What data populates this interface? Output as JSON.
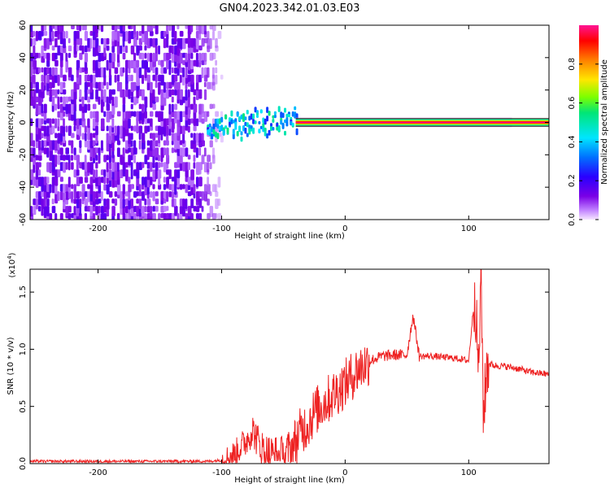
{
  "figure": {
    "title": "GN04.2023.342.01.03.E03"
  },
  "chart_data": [
    {
      "type": "heatmap",
      "xlabel": "Height of straight line (km)",
      "ylabel": "Frequency (Hz)",
      "xlim": [
        -255,
        165
      ],
      "ylim": [
        -60,
        60
      ],
      "xticks": [
        -200,
        -100,
        0,
        100
      ],
      "yticks": [
        -60,
        -40,
        -20,
        0,
        20,
        40,
        60
      ],
      "colorbar": {
        "label": "Normalized spectral amplitude",
        "range": [
          0.0,
          1.0
        ],
        "ticks": [
          "0.0",
          "0.2",
          "0.4",
          "0.6",
          "0.8"
        ],
        "colormap": [
          "#f6e6ff",
          "#8a2be2",
          "#3a00e6",
          "#0070ff",
          "#00e5ff",
          "#00e676",
          "#b4ff00",
          "#ffe600",
          "#ff8000",
          "#ff0000",
          "#ff1493"
        ]
      },
      "regions": [
        {
          "x": [
            -255,
            -110
          ],
          "freq": [
            -60,
            60
          ],
          "amplitude": 0.15,
          "character": "broadband noise"
        },
        {
          "x": [
            -110,
            -40
          ],
          "freq": [
            -10,
            15
          ],
          "amplitude": 0.35,
          "character": "emerging signal"
        },
        {
          "x": [
            -40,
            165
          ],
          "freq": [
            -1,
            1
          ],
          "amplitude": 0.95,
          "character": "narrow line near 0 Hz"
        }
      ]
    },
    {
      "type": "line",
      "xlabel": "Height of straight line (km)",
      "ylabel": "SNR (10 * v/v)",
      "scale_label": "(x10^4)",
      "xlim": [
        -255,
        165
      ],
      "ylim": [
        0.0,
        1.7
      ],
      "xticks": [
        -200,
        -100,
        0,
        100
      ],
      "yticks": [
        "0.0",
        "0.5",
        "1.0",
        "1.5"
      ],
      "color": "#ee2222",
      "series": [
        {
          "x": [
            -255,
            -200,
            -150,
            -120,
            -110,
            -100,
            -90,
            -80,
            -75,
            -70,
            -65,
            -60,
            -55,
            -50,
            -45,
            -40,
            -35,
            -30,
            -25,
            -20,
            -15,
            -10,
            -5,
            0,
            10,
            20,
            30,
            40,
            50,
            55,
            60,
            70,
            80,
            90,
            100,
            105,
            108,
            110,
            112,
            115,
            120,
            130,
            140,
            150,
            165
          ],
          "y": [
            0.02,
            0.02,
            0.02,
            0.02,
            0.02,
            0.03,
            0.08,
            0.2,
            0.3,
            0.18,
            0.1,
            0.08,
            0.06,
            0.05,
            0.1,
            0.2,
            0.3,
            0.35,
            0.45,
            0.5,
            0.55,
            0.6,
            0.65,
            0.7,
            0.82,
            0.9,
            0.94,
            0.95,
            0.95,
            1.3,
            0.94,
            0.94,
            0.93,
            0.92,
            0.9,
            1.5,
            0.8,
            1.65,
            0.4,
            0.88,
            0.86,
            0.85,
            0.83,
            0.8,
            0.78
          ]
        }
      ]
    }
  ]
}
